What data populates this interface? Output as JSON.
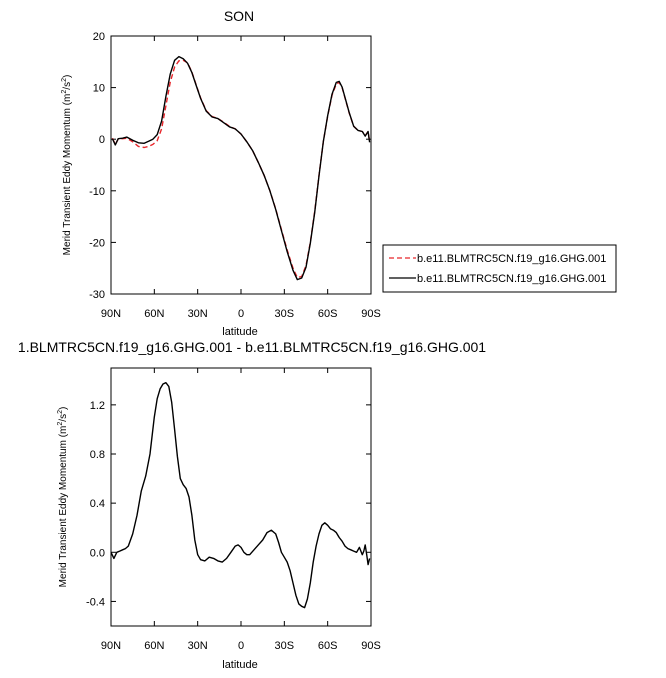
{
  "chart_data": [
    {
      "type": "line",
      "title": "SON",
      "xlabel": "latitude",
      "ylabel_main": "Merid Transient Eddy Momentum (m",
      "ylabel_sup": "2",
      "ylabel_mid": "/s",
      "ylabel_close": ")",
      "xlim": [
        90,
        -90
      ],
      "ylim": [
        -30,
        20
      ],
      "x_ticks": [
        90,
        60,
        30,
        0,
        -30,
        -60,
        -90
      ],
      "x_tick_labels": [
        "90N",
        "60N",
        "30N",
        "0",
        "30S",
        "60S",
        "90S"
      ],
      "y_ticks": [
        20,
        10,
        0,
        -10,
        -20,
        -30
      ],
      "y_tick_labels": [
        "20",
        "10",
        "0",
        "-10",
        "-20",
        "-30"
      ],
      "legend_position": "right",
      "series": [
        {
          "name": "b.e11.BLMTRC5CN.f19_g16.GHG.001",
          "color": "#e8262b",
          "dash": "dashed",
          "x": [
            89,
            87,
            85,
            82,
            79,
            75,
            71,
            67,
            64,
            61,
            58,
            55,
            52,
            49,
            46,
            43,
            40,
            37,
            34,
            31,
            28,
            24,
            20,
            16,
            12,
            8,
            4,
            0,
            -4,
            -8,
            -12,
            -16,
            -20,
            -24,
            -28,
            -32,
            -36,
            -39,
            -42,
            -45,
            -48,
            -51,
            -54,
            -57,
            -60,
            -63,
            -66,
            -68,
            -70,
            -72,
            -75,
            -78,
            -81,
            -84,
            -86,
            -88,
            -89
          ],
          "values": [
            0.2,
            -1.0,
            0.0,
            0.1,
            0.2,
            -0.5,
            -1.4,
            -1.6,
            -1.4,
            -1.0,
            -0.3,
            2.0,
            6.5,
            11.0,
            14.0,
            15.2,
            15.3,
            14.8,
            13.0,
            10.5,
            8.0,
            5.5,
            4.4,
            4.0,
            3.3,
            2.5,
            2.0,
            1.0,
            -0.5,
            -2.2,
            -4.5,
            -7.0,
            -10.0,
            -13.5,
            -17.5,
            -21.5,
            -25.0,
            -26.8,
            -26.6,
            -24.5,
            -20.0,
            -14.0,
            -7.0,
            -0.5,
            4.5,
            8.5,
            10.7,
            11.0,
            10.0,
            8.0,
            5.0,
            2.5,
            1.7,
            1.5,
            0.7,
            1.5,
            -0.5
          ]
        },
        {
          "name": "b.e11.BLMTRC5CN.f19_g16.GHG.001",
          "color": "#000000",
          "dash": "solid",
          "x": [
            89,
            87,
            85,
            82,
            79,
            75,
            71,
            67,
            64,
            61,
            58,
            55,
            52,
            49,
            46,
            43,
            40,
            37,
            34,
            31,
            28,
            24,
            20,
            16,
            12,
            8,
            4,
            0,
            -4,
            -8,
            -12,
            -16,
            -20,
            -24,
            -28,
            -32,
            -36,
            -39,
            -42,
            -45,
            -48,
            -51,
            -54,
            -57,
            -60,
            -63,
            -66,
            -68,
            -70,
            -72,
            -75,
            -78,
            -81,
            -84,
            -86,
            -88,
            -89
          ],
          "values": [
            0.1,
            -1.1,
            0.1,
            0.2,
            0.4,
            -0.2,
            -0.7,
            -0.8,
            -0.4,
            0.0,
            0.9,
            3.5,
            8.3,
            12.6,
            15.3,
            16.0,
            15.6,
            14.7,
            12.9,
            10.4,
            7.9,
            5.4,
            4.3,
            4.0,
            3.2,
            2.4,
            2.0,
            1.0,
            -0.5,
            -2.2,
            -4.5,
            -7.0,
            -10.0,
            -13.6,
            -17.7,
            -21.8,
            -25.4,
            -27.2,
            -26.9,
            -24.8,
            -20.2,
            -14.2,
            -7.1,
            -0.5,
            4.6,
            8.7,
            11.0,
            11.2,
            10.1,
            8.1,
            5.1,
            2.5,
            1.7,
            1.5,
            0.6,
            1.5,
            -0.6
          ]
        }
      ]
    },
    {
      "type": "line",
      "title": "1.BLMTRC5CN.f19_g16.GHG.001 - b.e11.BLMTRC5CN.f19_g16.GHG.001",
      "xlabel": "latitude",
      "ylabel_main": "Merid Transient Eddy Momentum (m",
      "ylabel_sup": "2",
      "ylabel_mid": "/s",
      "ylabel_close": ")",
      "xlim": [
        90,
        -90
      ],
      "ylim": [
        -0.6,
        1.5
      ],
      "x_ticks": [
        90,
        60,
        30,
        0,
        -30,
        -60,
        -90
      ],
      "x_tick_labels": [
        "90N",
        "60N",
        "30N",
        "0",
        "30S",
        "60S",
        "90S"
      ],
      "y_ticks": [
        1.2,
        0.8,
        0.4,
        0.0,
        -0.4
      ],
      "y_tick_labels": [
        "1.2",
        "0.8",
        "0.4",
        "0.0",
        "-0.4"
      ],
      "series": [
        {
          "color": "#000000",
          "dash": "solid",
          "x": [
            90,
            88,
            86,
            84,
            82,
            80,
            78,
            75,
            72,
            69,
            66,
            63,
            60,
            58,
            56,
            54,
            52,
            50,
            48,
            46,
            44,
            42,
            40,
            38,
            36,
            34,
            32,
            30,
            28,
            25,
            22,
            19,
            16,
            13,
            10,
            7,
            4,
            2,
            0,
            -2,
            -4,
            -6,
            -9,
            -12,
            -15,
            -18,
            -21,
            -24,
            -26,
            -28,
            -30,
            -32,
            -34,
            -36,
            -38,
            -40,
            -42,
            -44,
            -46,
            -48,
            -50,
            -52,
            -54,
            -56,
            -58,
            -60,
            -62,
            -64,
            -66,
            -68,
            -70,
            -72,
            -74,
            -76,
            -78,
            -80,
            -82,
            -84,
            -85,
            -86,
            -87,
            -88,
            -89
          ],
          "values": [
            0.0,
            -0.05,
            0.0,
            0.01,
            0.02,
            0.03,
            0.05,
            0.15,
            0.3,
            0.5,
            0.62,
            0.8,
            1.1,
            1.25,
            1.33,
            1.37,
            1.38,
            1.35,
            1.22,
            1.0,
            0.78,
            0.6,
            0.55,
            0.52,
            0.45,
            0.3,
            0.1,
            -0.02,
            -0.06,
            -0.07,
            -0.04,
            -0.05,
            -0.07,
            -0.08,
            -0.05,
            0.0,
            0.05,
            0.06,
            0.04,
            0.0,
            -0.02,
            -0.02,
            0.02,
            0.06,
            0.1,
            0.16,
            0.18,
            0.15,
            0.08,
            0.0,
            -0.04,
            -0.08,
            -0.15,
            -0.25,
            -0.35,
            -0.42,
            -0.44,
            -0.45,
            -0.38,
            -0.25,
            -0.08,
            0.05,
            0.15,
            0.22,
            0.24,
            0.22,
            0.19,
            0.18,
            0.16,
            0.12,
            0.09,
            0.05,
            0.03,
            0.02,
            0.01,
            0.0,
            0.04,
            -0.02,
            0.01,
            0.06,
            -0.02,
            -0.1,
            -0.05
          ]
        }
      ]
    }
  ]
}
